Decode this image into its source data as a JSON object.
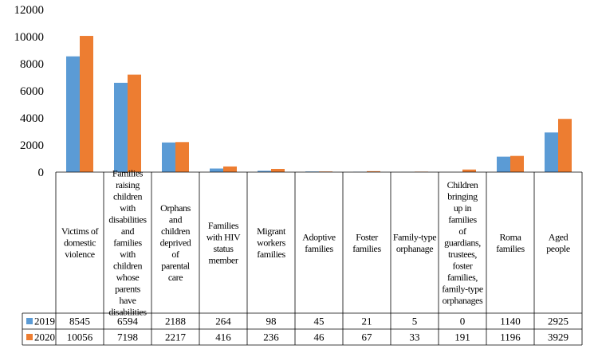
{
  "chart_data": {
    "type": "bar",
    "title": "",
    "xlabel": "",
    "ylabel": "",
    "ylim": [
      0,
      12000
    ],
    "yticks": [
      0,
      2000,
      4000,
      6000,
      8000,
      10000,
      12000
    ],
    "grid": false,
    "legend": "data table",
    "categories": [
      "Victims of domestic violence",
      "Families raising children with disabilities and families with children whose parents have disabilities",
      "Orphans and children deprived of parental care",
      "Families with HIV status member",
      "Migrant workers families",
      "Adoptive families",
      "Foster families",
      "Family-type orphanage",
      "Children bringing up in families of guardians, trustees, foster families, family-type orphanages",
      "Roma families",
      "Aged people"
    ],
    "series": [
      {
        "name": "2019",
        "color": "#5B9BD5",
        "values": [
          8545,
          6594,
          2188,
          264,
          98,
          45,
          21,
          5,
          0,
          1140,
          2925
        ]
      },
      {
        "name": "2020",
        "color": "#ED7D31",
        "values": [
          10056,
          7198,
          2217,
          416,
          236,
          46,
          67,
          33,
          191,
          1196,
          3929
        ]
      }
    ]
  }
}
